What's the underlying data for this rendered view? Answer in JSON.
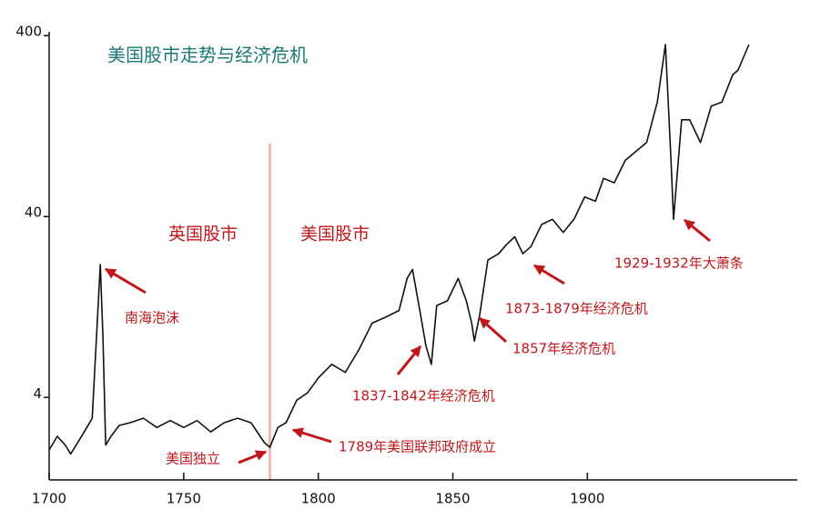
{
  "chart_data": {
    "type": "line",
    "title": "美国股市走势与经济危机",
    "log_y": true,
    "xlim": [
      1700,
      1978
    ],
    "ylim": [
      1.4,
      420
    ],
    "xticks": [
      1700,
      1750,
      1800,
      1850,
      1900
    ],
    "yticks": [
      4,
      40,
      400
    ],
    "divider_x": 1782,
    "region_labels": [
      "英国股市",
      "美国股市"
    ],
    "annotations": [
      "南海泡沫",
      "美国独立",
      "1789年美国联邦政府成立",
      "1837-1842年经济危机",
      "1857年经济危机",
      "1873-1879年经济危机",
      "1929-1932年大萧条"
    ],
    "x": [
      1700,
      1703,
      1706,
      1708,
      1711,
      1714,
      1716,
      1719,
      1720,
      1721,
      1723,
      1726,
      1730,
      1735,
      1740,
      1745,
      1750,
      1755,
      1760,
      1765,
      1770,
      1775,
      1780,
      1782,
      1785,
      1788,
      1792,
      1796,
      1800,
      1805,
      1810,
      1815,
      1820,
      1825,
      1830,
      1833,
      1835,
      1838,
      1840,
      1842,
      1844,
      1848,
      1852,
      1855,
      1857,
      1858,
      1860,
      1863,
      1867,
      1870,
      1873,
      1876,
      1879,
      1883,
      1887,
      1891,
      1895,
      1899,
      1903,
      1906,
      1910,
      1914,
      1918,
      1922,
      1926,
      1929,
      1931,
      1932,
      1935,
      1938,
      1942,
      1946,
      1950,
      1954,
      1956,
      1960
    ],
    "series": [
      {
        "color": "#111111",
        "values": [
          2.05,
          2.44,
          2.18,
          1.95,
          2.3,
          2.73,
          3.07,
          21.7,
          8.65,
          2.18,
          2.44,
          2.8,
          2.9,
          3.07,
          2.73,
          2.98,
          2.73,
          2.98,
          2.58,
          2.9,
          3.07,
          2.9,
          2.25,
          2.12,
          2.73,
          2.9,
          3.86,
          4.24,
          5.13,
          6.1,
          5.5,
          7.3,
          10.3,
          11.1,
          12.1,
          18.2,
          20.4,
          11.5,
          7.7,
          6.1,
          12.9,
          13.7,
          18.2,
          13.7,
          10.3,
          8.2,
          11.5,
          23.0,
          24.9,
          28.1,
          30.9,
          24.9,
          27.3,
          36.2,
          38.6,
          32.7,
          38.6,
          51.4,
          48.6,
          65.0,
          61.5,
          81.6,
          91.6,
          102.6,
          172,
          357,
          86.4,
          38.6,
          137,
          137,
          102.6,
          163,
          172,
          243,
          258,
          357
        ]
      }
    ]
  }
}
